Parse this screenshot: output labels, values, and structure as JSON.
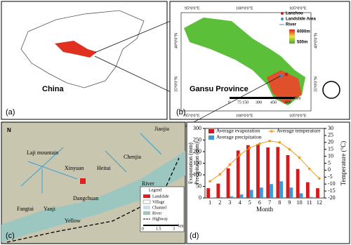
{
  "panel_a": {
    "label": "(a)",
    "country": "China"
  },
  "panel_b": {
    "label": "(b)",
    "region": "Gansu Province",
    "top_lon": [
      "95°0'0\"E",
      "100°0'0\"E",
      "105°0'0\"E"
    ],
    "bottom_lon": [
      "95°0'0\"E",
      "100°0'0\"E",
      "105°0'0\"E"
    ],
    "left_lat": [
      "40°0'0\"N",
      "35°0'0\"N"
    ],
    "right_lat": [
      "40°0'0\"N",
      "35°0'0\"N"
    ],
    "legend": [
      "Lanzhou",
      "Landslide Area",
      "River",
      "6000m",
      "500m"
    ],
    "scale": [
      "0",
      "75",
      "150",
      "300",
      "450",
      "600"
    ],
    "scale_unit": "km"
  },
  "panel_c": {
    "label": "(c)",
    "north": "N",
    "places": [
      "Laji mountain",
      "Jiaojia",
      "Chenjia",
      "Xinyuan",
      "Heitai",
      "Dangchuan",
      "Fangtai",
      "Yanji",
      "Yellow",
      "River"
    ],
    "legend_title": "Legend",
    "legend": [
      "Landslide",
      "Village",
      "Channel",
      "River",
      "Highway"
    ],
    "scale": [
      "0",
      "1.5",
      "3"
    ],
    "scale_unit": "km"
  },
  "chart_data": {
    "type": "bar",
    "label": "(d)",
    "xlabel": "Month",
    "ylabel": [
      "Evaporation (mm)",
      "Precipitation (mm)"
    ],
    "y2label": "Temperature (°C)",
    "categories": [
      "1",
      "2",
      "3",
      "4",
      "5",
      "6",
      "7",
      "8",
      "9",
      "10",
      "11",
      "12"
    ],
    "series": [
      {
        "name": "Average evaporation",
        "type": "bar",
        "color": "#d7191c",
        "values": [
          42,
          62,
          128,
          205,
          228,
          232,
          218,
          220,
          185,
          125,
          68,
          42
        ]
      },
      {
        "name": "Average temperature",
        "type": "line",
        "axis": "y2",
        "color": "#f39c12",
        "values": [
          -8,
          -3,
          4,
          11,
          16,
          19,
          21,
          20,
          15,
          9,
          1,
          -6
        ]
      },
      {
        "name": "Average precipitation",
        "type": "bar",
        "color": "#3a9ad9",
        "values": [
          2,
          3,
          7,
          15,
          35,
          45,
          60,
          72,
          45,
          20,
          4,
          2
        ]
      }
    ],
    "ylim": [
      0,
      300
    ],
    "yticks": [
      0,
      50,
      100,
      150,
      200,
      250,
      300
    ],
    "y2lim": [
      -20,
      30
    ],
    "y2ticks": [
      -20,
      -15,
      -10,
      -5,
      0,
      5,
      10,
      15,
      20,
      25,
      30
    ]
  }
}
